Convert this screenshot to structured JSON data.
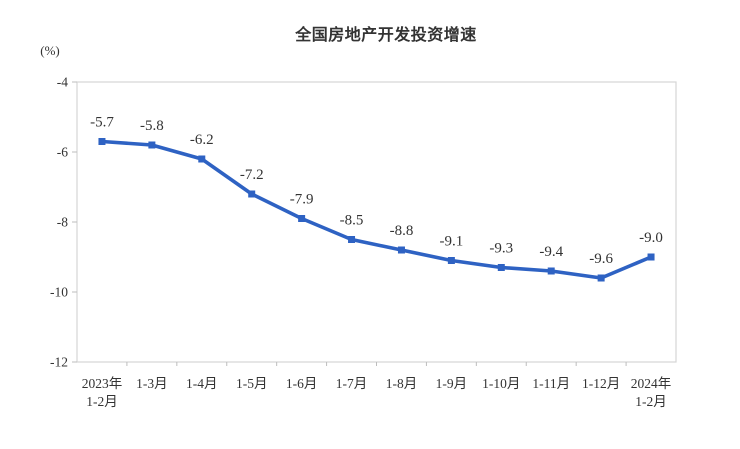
{
  "chart": {
    "colors": {
      "line": "#2e62c3",
      "marker": "#2e62c3",
      "plot_border": "#d6d6d6",
      "tick": "#bdbdbd",
      "text": "#333333",
      "background": "#ffffff"
    }
  },
  "chart_data": {
    "type": "line",
    "title": "全国房地产开发投资增速",
    "ylabel": "(%)",
    "xlabel": "",
    "categories": [
      "2023年\n1-2月",
      "1-3月",
      "1-4月",
      "1-5月",
      "1-6月",
      "1-7月",
      "1-8月",
      "1-9月",
      "1-10月",
      "1-11月",
      "1-12月",
      "2024年\n1-2月"
    ],
    "values": [
      -5.7,
      -5.8,
      -6.2,
      -7.2,
      -7.9,
      -8.5,
      -8.8,
      -9.1,
      -9.3,
      -9.4,
      -9.6,
      -9.0
    ],
    "data_labels": [
      "-5.7",
      "-5.8",
      "-6.2",
      "-7.2",
      "-7.9",
      "-8.5",
      "-8.8",
      "-9.1",
      "-9.3",
      "-9.4",
      "-9.6",
      "-9.0"
    ],
    "ylim": [
      -12,
      -4
    ],
    "yticks": [
      -4,
      -6,
      -8,
      -10,
      -12
    ],
    "ytick_labels": [
      "-4",
      "-6",
      "-8",
      "-10",
      "-12"
    ],
    "grid": false,
    "legend": "none",
    "marker": "square"
  }
}
